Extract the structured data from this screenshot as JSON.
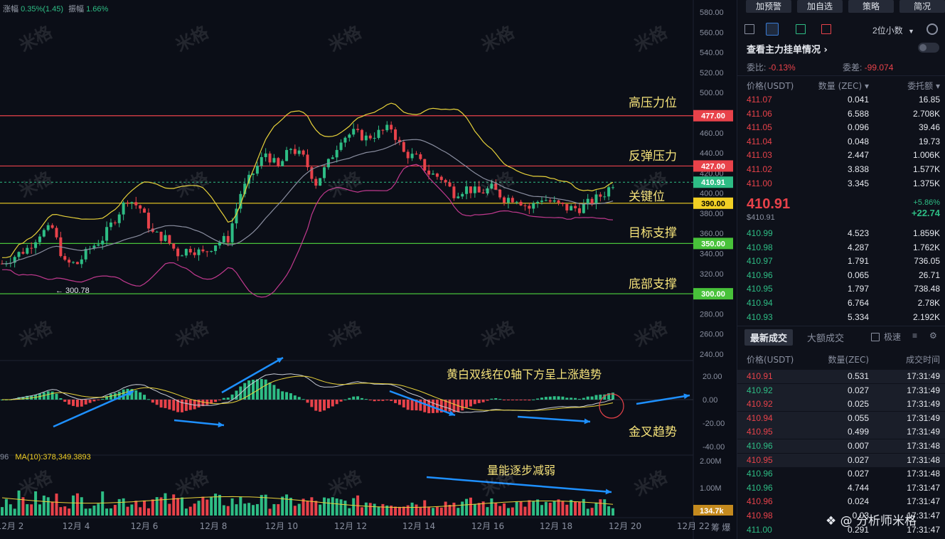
{
  "top_info": {
    "change_label": "涨幅",
    "change_value": "0.35%(1.45)",
    "amp_label": "振幅",
    "amp_value": "1.66%"
  },
  "ma_label": "MA(10):378,349.3893",
  "ma_prefix": "96",
  "low_marker": "← 300.78",
  "price_axis": [
    "580.00",
    "560.00",
    "540.00",
    "520.00",
    "500.00",
    "480.00",
    "460.00",
    "440.00",
    "420.00",
    "400.00",
    "380.00",
    "360.00",
    "340.00",
    "320.00",
    "300.00",
    "280.00",
    "260.00",
    "240.00"
  ],
  "macd_axis": [
    "20.00",
    "0.00",
    "-20.00",
    "-40.00"
  ],
  "vol_axis": [
    "2.00M",
    "1.00M"
  ],
  "vol_tag": "134.7k",
  "date_axis": [
    "12月 2",
    "12月 4",
    "12月 6",
    "12月 8",
    "12月 10",
    "12月 12",
    "12月 14",
    "12月 16",
    "12月 18",
    "12月 20",
    "12月 22"
  ],
  "date_tail": "筹 爆",
  "price_tags": [
    {
      "value": "477.00",
      "price": 477,
      "bg": "#e8424a",
      "fg": "#ffffff"
    },
    {
      "value": "427.00",
      "price": 427,
      "bg": "#e8424a",
      "fg": "#ffffff"
    },
    {
      "value": "410.91",
      "price": 410.91,
      "bg": "#2ebd85",
      "fg": "#ffffff"
    },
    {
      "value": "390.00",
      "price": 390,
      "bg": "#f2d024",
      "fg": "#000000"
    },
    {
      "value": "350.00",
      "price": 350,
      "bg": "#48c23a",
      "fg": "#ffffff"
    },
    {
      "value": "300.00",
      "price": 300,
      "bg": "#48c23a",
      "fg": "#ffffff"
    }
  ],
  "annotations": {
    "high_pressure": "高压力位",
    "rebound_pressure": "反弹压力",
    "key_level": "关键位",
    "target_support": "目标支撑",
    "bottom_support": "底部支撑",
    "macd_note": "黄白双线在0轴下方呈上涨趋势",
    "golden_cross": "金叉趋势",
    "volume_note": "量能逐步减弱"
  },
  "watermark_text": "米格",
  "colors": {
    "up": "#2ebd85",
    "down": "#e8424a",
    "yellow": "#f2d024",
    "green_line": "#48c23a",
    "bg": "#0b0e17",
    "accent_blue": "#1e90ff"
  },
  "panel": {
    "buttons": [
      "加预警",
      "加自选",
      "策略",
      "简况"
    ],
    "decimal_select": "2位小数",
    "main_orders": "查看主力挂单情况",
    "ratio_label": "委比:",
    "ratio_value": "-0.13%",
    "diff_label": "委差:",
    "diff_value": "-99.074",
    "ob_headers": [
      "价格(USDT)",
      "数量 (ZEC)",
      "委托额"
    ],
    "asks": [
      [
        "411.07",
        "0.041",
        "16.85"
      ],
      [
        "411.06",
        "6.588",
        "2.708K"
      ],
      [
        "411.05",
        "0.096",
        "39.46"
      ],
      [
        "411.04",
        "0.048",
        "19.73"
      ],
      [
        "411.03",
        "2.447",
        "1.006K"
      ],
      [
        "411.02",
        "3.838",
        "1.577K"
      ],
      [
        "411.00",
        "3.345",
        "1.375K"
      ]
    ],
    "last_price": "410.91",
    "last_sub": "$410.91",
    "pct_change": "+5.86%",
    "abs_change": "+22.74",
    "bids": [
      [
        "410.99",
        "4.523",
        "1.859K"
      ],
      [
        "410.98",
        "4.287",
        "1.762K"
      ],
      [
        "410.97",
        "1.791",
        "736.05"
      ],
      [
        "410.96",
        "0.065",
        "26.71"
      ],
      [
        "410.95",
        "1.797",
        "738.48"
      ],
      [
        "410.94",
        "6.764",
        "2.78K"
      ],
      [
        "410.93",
        "5.334",
        "2.192K"
      ]
    ],
    "tabs": [
      "最新成交",
      "大额成交"
    ],
    "speed_label": "极速",
    "trade_headers": [
      "价格(USDT)",
      "数量(ZEC)",
      "成交时间"
    ],
    "trades": [
      [
        "410.91",
        "0.531",
        "17:31:49",
        "down"
      ],
      [
        "410.92",
        "0.027",
        "17:31:49",
        "up"
      ],
      [
        "410.92",
        "0.025",
        "17:31:49",
        "down"
      ],
      [
        "410.94",
        "0.055",
        "17:31:49",
        "down"
      ],
      [
        "410.95",
        "0.499",
        "17:31:49",
        "down"
      ],
      [
        "410.96",
        "0.007",
        "17:31:48",
        "up"
      ],
      [
        "410.95",
        "0.027",
        "17:31:48",
        "down"
      ],
      [
        "410.96",
        "0.027",
        "17:31:48",
        "up"
      ],
      [
        "410.96",
        "4.744",
        "17:31:47",
        "up"
      ],
      [
        "410.96",
        "0.024",
        "17:31:47",
        "down"
      ],
      [
        "410.98",
        "0.03",
        "17:31:47",
        "down"
      ],
      [
        "411.00",
        "0.291",
        "17:31:47",
        "up"
      ]
    ],
    "footer_logo": "分析师米格"
  }
}
